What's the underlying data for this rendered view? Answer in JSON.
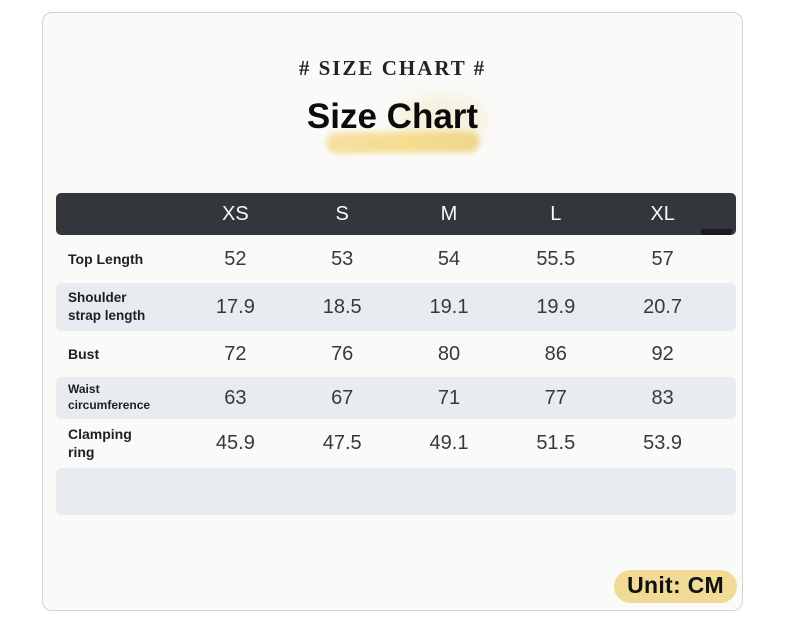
{
  "page": {
    "eyebrow": "# SIZE CHART #",
    "title": "Size Chart",
    "unit_badge": "Unit: CM"
  },
  "labels_display": [
    {
      "line1": "Top Length",
      "line2": ""
    },
    {
      "line1": "Shoulder",
      "line2": "strap length"
    },
    {
      "line1": "Bust",
      "line2": ""
    },
    {
      "line1": "Waist",
      "line2": "circumference"
    },
    {
      "line1": "Clamping",
      "line2": "ring"
    }
  ],
  "chart_data": {
    "type": "table",
    "title": "Size Chart",
    "unit": "CM",
    "columns": [
      "",
      "XS",
      "S",
      "M",
      "L",
      "XL"
    ],
    "rows": [
      [
        "Top Length",
        52,
        53,
        54,
        55.5,
        57
      ],
      [
        "Shoulder strap length",
        17.9,
        18.5,
        19.1,
        19.9,
        20.7
      ],
      [
        "Bust",
        72,
        76,
        80,
        86,
        92
      ],
      [
        "Waist circumference",
        63,
        67,
        71,
        77,
        83
      ],
      [
        "Clamping ring",
        45.9,
        47.5,
        49.1,
        51.5,
        53.9
      ]
    ]
  },
  "colors": {
    "header_bg": "#33363b",
    "header_text": "#fafafa",
    "row_shade": "#e8ebef",
    "card_bg": "#fafaf9",
    "card_border": "#d3d3d1",
    "title_highlight": "#f4d87e",
    "unit_badge_bg": "#f1da96"
  }
}
